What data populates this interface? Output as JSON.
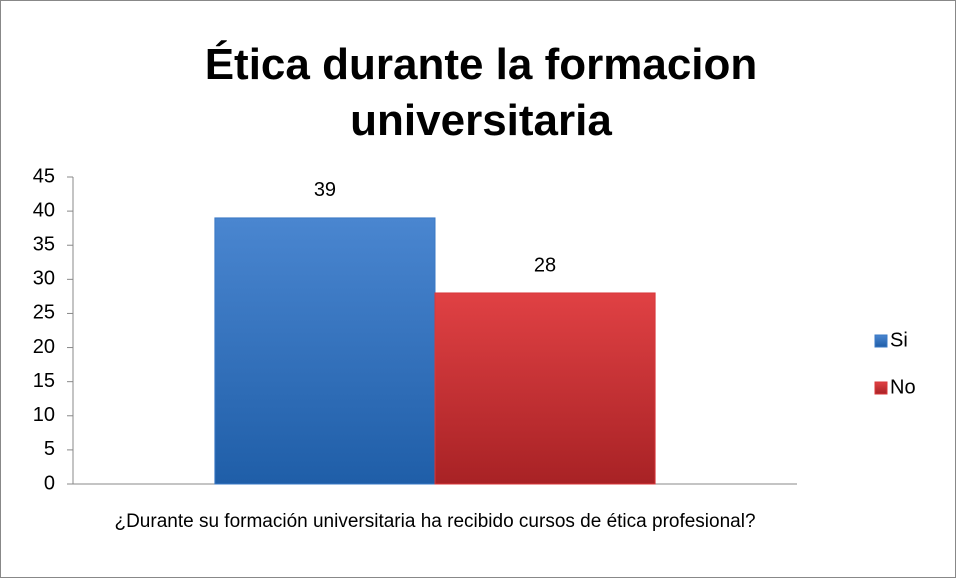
{
  "chart_data": {
    "type": "bar",
    "title": "Ética durante la formacion universitaria",
    "categories": [
      "¿Durante su formación universitaria ha recibido cursos de ética profesional?"
    ],
    "series": [
      {
        "name": "Si",
        "color": "#3a78c4",
        "values": [
          39
        ]
      },
      {
        "name": "No",
        "color": "#d8373a",
        "values": [
          28
        ]
      }
    ],
    "ylim": [
      0,
      45
    ],
    "yticks": [
      0,
      5,
      10,
      15,
      20,
      25,
      30,
      35,
      40,
      45
    ],
    "grid": false,
    "legend": "right"
  }
}
